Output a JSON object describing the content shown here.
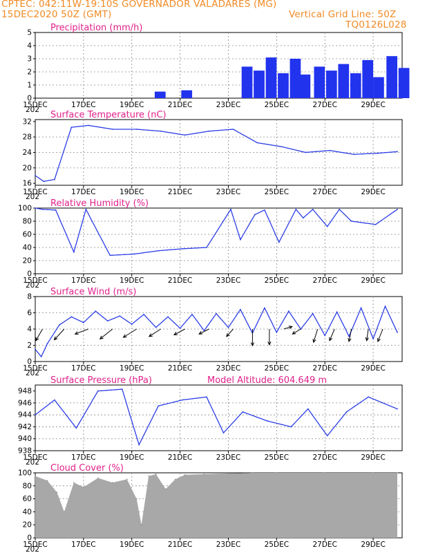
{
  "header": {
    "line1_left": "CPTEC:   042:11W-19:10S   GOVERNADOR VALADARES (MG)",
    "line2_left": "15DEC2020 50Z (GMT)",
    "line2_right": "Vertical Grid Line: 50Z",
    "line3_right": "TQ0126L028"
  },
  "colors": {
    "header": "#f08a24",
    "title": "#e0208a",
    "line": "#2b3ee6",
    "bar": "#2233ee",
    "cloud": "#a8a8a8"
  },
  "x_axis": {
    "tick_labels": [
      "15DEC",
      "17DEC",
      "19DEC",
      "21DEC",
      "23DEC",
      "25DEC",
      "27DEC",
      "29DEC"
    ],
    "tick_days": [
      0,
      2,
      4,
      6,
      8,
      10,
      12,
      14
    ],
    "range_days": [
      0,
      15.2
    ],
    "year_fragment": "202"
  },
  "chart_data": [
    {
      "type": "bar",
      "title": "Precipitation (mm/h)",
      "ylim": [
        0,
        5
      ],
      "yticks": [
        "0",
        "1",
        "2",
        "3",
        "4",
        "5"
      ],
      "series": [
        {
          "name": "precip",
          "x": [
            4.95,
            6.05,
            8.55,
            9.05,
            9.55,
            10.05,
            10.55,
            10.95,
            11.55,
            12.05,
            12.55,
            13.05,
            13.55,
            14.0,
            14.55,
            15.05
          ],
          "values": [
            0.5,
            0.6,
            2.4,
            2.1,
            3.1,
            1.9,
            3.0,
            1.8,
            2.4,
            2.1,
            2.6,
            1.9,
            2.9,
            1.6,
            3.2,
            2.3
          ]
        }
      ]
    },
    {
      "type": "line",
      "title": "Surface Temperature (nC)",
      "ylim": [
        15.5,
        32.5
      ],
      "yticks": [
        "16",
        "20",
        "24",
        "28",
        "32"
      ],
      "series": [
        {
          "name": "temperature",
          "x": [
            0,
            0.35,
            0.8,
            1.5,
            2.2,
            3.2,
            4.2,
            5.2,
            6.2,
            7.2,
            8.2,
            9.2,
            10.2,
            11.2,
            12.2,
            13.2,
            14.2,
            15.0
          ],
          "values": [
            18,
            16.5,
            17,
            30.5,
            31,
            30,
            30,
            29.5,
            28.5,
            29.5,
            30,
            26.5,
            25.5,
            24,
            24.5,
            23.5,
            23.8,
            24.2
          ]
        }
      ]
    },
    {
      "type": "line",
      "title": "Relative Humidity (%)",
      "ylim": [
        0,
        100
      ],
      "yticks": [
        "0",
        "20",
        "40",
        "60",
        "80",
        "100"
      ],
      "series": [
        {
          "name": "humidity",
          "x": [
            0,
            0.3,
            0.85,
            1.6,
            2.1,
            3.1,
            4.1,
            5.1,
            6.1,
            7.1,
            8.1,
            8.5,
            9.1,
            9.5,
            10.1,
            10.8,
            11.1,
            11.5,
            12.1,
            12.6,
            13.1,
            14.1,
            15.0
          ],
          "values": [
            100,
            98,
            97,
            33,
            98,
            28,
            30,
            35,
            38,
            40,
            98,
            52,
            90,
            97,
            48,
            98,
            85,
            98,
            72,
            98,
            80,
            75,
            98
          ]
        }
      ]
    },
    {
      "type": "line",
      "title": "Surface Wind (m/s)",
      "ylim": [
        0,
        8
      ],
      "yticks": [
        "0",
        "2",
        "4",
        "6",
        "8"
      ],
      "series": [
        {
          "name": "wind_speed",
          "x": [
            0,
            0.25,
            0.5,
            1.0,
            1.5,
            2.0,
            2.5,
            3.0,
            3.5,
            4.0,
            4.5,
            5.0,
            5.5,
            6.0,
            6.5,
            7.0,
            7.5,
            8.0,
            8.5,
            9.0,
            9.5,
            10.0,
            10.5,
            11.0,
            11.5,
            12.0,
            12.5,
            13.0,
            13.5,
            14.0,
            14.5,
            15.0
          ],
          "values": [
            1.5,
            0.6,
            2.2,
            4.5,
            5.5,
            4.8,
            6.2,
            5.0,
            5.6,
            4.6,
            5.8,
            4.2,
            5.5,
            4.1,
            5.8,
            3.8,
            5.9,
            4.2,
            6.4,
            3.5,
            6.6,
            3.6,
            6.2,
            4.0,
            5.9,
            3.2,
            6.1,
            3.1,
            6.6,
            2.8,
            6.8,
            3.6
          ]
        }
      ],
      "wind_vectors": [
        {
          "day": 0.3,
          "u": 0.8,
          "v": 1.4
        },
        {
          "day": 1.2,
          "u": 1.2,
          "v": 1.3
        },
        {
          "day": 2.2,
          "u": 1.6,
          "v": 0.6
        },
        {
          "day": 3.2,
          "u": 1.5,
          "v": 1.2
        },
        {
          "day": 4.2,
          "u": 1.6,
          "v": 1.0
        },
        {
          "day": 5.2,
          "u": 1.4,
          "v": 0.9
        },
        {
          "day": 6.2,
          "u": 1.3,
          "v": 0.7
        },
        {
          "day": 7.2,
          "u": 1.2,
          "v": 0.6
        },
        {
          "day": 8.2,
          "u": 0.8,
          "v": 0.9
        },
        {
          "day": 9.0,
          "u": 0.0,
          "v": 2.0
        },
        {
          "day": 9.7,
          "u": 0.0,
          "v": 1.9
        },
        {
          "day": 10.3,
          "u": -1.0,
          "v": -0.3
        },
        {
          "day": 11.0,
          "u": 1.0,
          "v": 0.6
        },
        {
          "day": 11.7,
          "u": 0.5,
          "v": 1.6
        },
        {
          "day": 12.4,
          "u": 0.6,
          "v": 1.4
        },
        {
          "day": 13.1,
          "u": 0.3,
          "v": 1.5
        },
        {
          "day": 13.8,
          "u": 0.2,
          "v": 1.4
        },
        {
          "day": 14.4,
          "u": 0.6,
          "v": 1.5
        }
      ]
    },
    {
      "type": "line",
      "title": "Surface Pressure (hPa)",
      "annotation": "Model Altitude: 604.649  m",
      "ylim": [
        938,
        949
      ],
      "yticks": [
        "938",
        "940",
        "942",
        "944",
        "946",
        "948"
      ],
      "series": [
        {
          "name": "pressure",
          "x": [
            0,
            0.8,
            1.7,
            2.6,
            3.6,
            4.3,
            5.1,
            6.1,
            7.1,
            7.8,
            8.6,
            9.6,
            10.6,
            11.3,
            12.1,
            12.9,
            13.8,
            15.0
          ],
          "values": [
            944,
            946.5,
            941.8,
            948,
            948.3,
            939,
            945.5,
            946.5,
            947,
            941,
            944.5,
            943,
            942,
            945,
            940.5,
            944.5,
            947,
            945
          ]
        }
      ]
    },
    {
      "type": "area",
      "title": "Cloud Cover (%)",
      "ylim": [
        0,
        100
      ],
      "yticks": [
        "0",
        "20",
        "40",
        "60",
        "80",
        "100"
      ],
      "series": [
        {
          "name": "cloud_cover",
          "x": [
            0,
            0.5,
            0.9,
            1.2,
            1.6,
            2.0,
            2.6,
            3.2,
            3.8,
            4.2,
            4.4,
            4.7,
            5.0,
            5.4,
            5.8,
            6.2,
            7.0,
            8.0,
            9.0,
            10.0,
            12.0,
            14.0,
            15.0
          ],
          "values": [
            95,
            88,
            70,
            40,
            85,
            78,
            92,
            85,
            90,
            60,
            20,
            95,
            98,
            75,
            90,
            97,
            98,
            99,
            100,
            100,
            100,
            100,
            100
          ]
        }
      ]
    }
  ]
}
